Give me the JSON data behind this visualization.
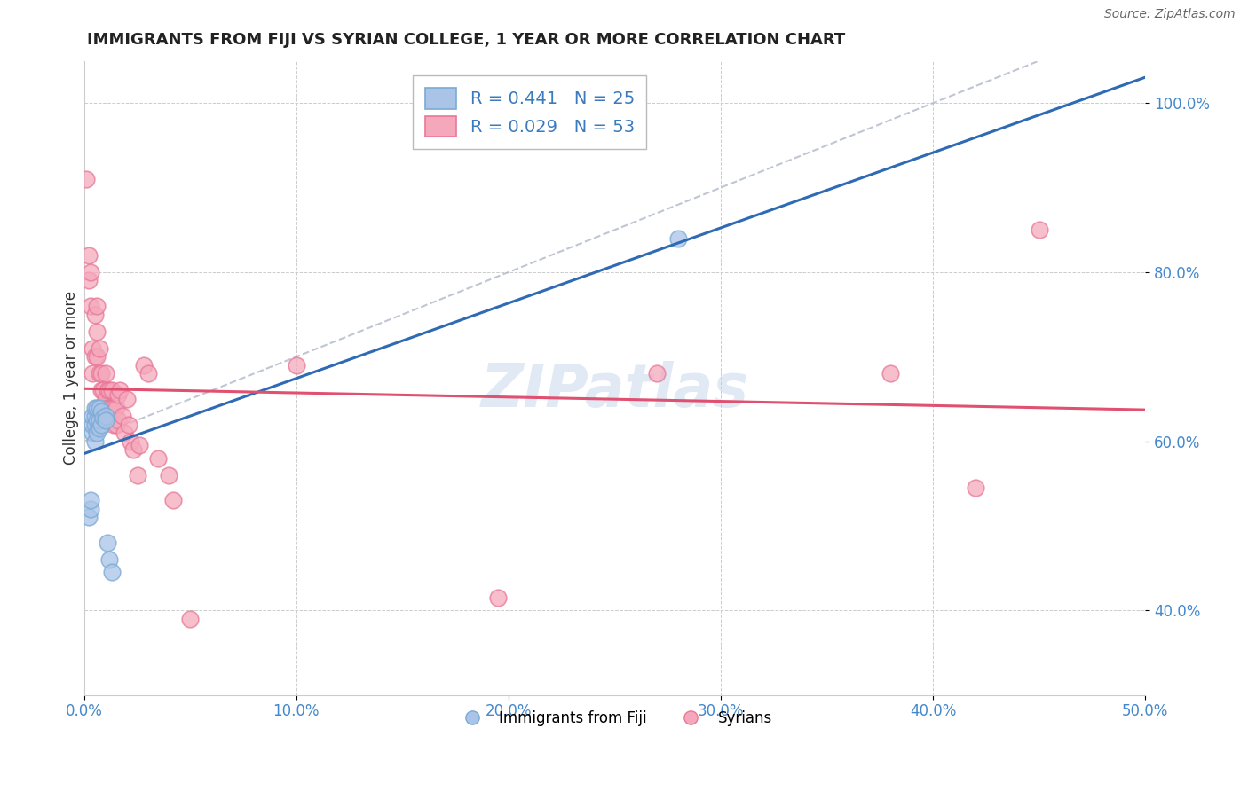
{
  "title": "IMMIGRANTS FROM FIJI VS SYRIAN COLLEGE, 1 YEAR OR MORE CORRELATION CHART",
  "source_text": "Source: ZipAtlas.com",
  "ylabel": "College, 1 year or more",
  "xlim": [
    0.0,
    0.5
  ],
  "ylim": [
    0.3,
    1.05
  ],
  "xticks": [
    0.0,
    0.1,
    0.2,
    0.3,
    0.4,
    0.5
  ],
  "yticks": [
    0.4,
    0.6,
    0.8,
    1.0
  ],
  "xticklabels": [
    "0.0%",
    "10.0%",
    "20.0%",
    "30.0%",
    "40.0%",
    "50.0%"
  ],
  "yticklabels": [
    "40.0%",
    "60.0%",
    "80.0%",
    "100.0%"
  ],
  "fiji_color": "#aac4e8",
  "syrian_color": "#f5a8bc",
  "fiji_edge": "#7aaad4",
  "syrian_edge": "#e87898",
  "trend_fiji_color": "#2f6bb5",
  "trend_syrian_color": "#e05070",
  "trend_dashed_color": "#b0b8c8",
  "watermark": "ZIPatlas",
  "legend_r_fiji": "R = 0.441",
  "legend_n_fiji": "N = 25",
  "legend_r_syrian": "R = 0.029",
  "legend_n_syrian": "N = 53",
  "fiji_x": [
    0.002,
    0.003,
    0.003,
    0.004,
    0.004,
    0.004,
    0.005,
    0.005,
    0.005,
    0.005,
    0.006,
    0.006,
    0.006,
    0.007,
    0.007,
    0.007,
    0.008,
    0.008,
    0.009,
    0.01,
    0.01,
    0.011,
    0.012,
    0.013,
    0.28
  ],
  "fiji_y": [
    0.51,
    0.52,
    0.53,
    0.61,
    0.62,
    0.63,
    0.6,
    0.62,
    0.63,
    0.64,
    0.61,
    0.625,
    0.64,
    0.615,
    0.625,
    0.64,
    0.62,
    0.635,
    0.628,
    0.63,
    0.625,
    0.48,
    0.46,
    0.445,
    0.84
  ],
  "syrian_x": [
    0.001,
    0.002,
    0.002,
    0.003,
    0.003,
    0.004,
    0.004,
    0.005,
    0.005,
    0.006,
    0.006,
    0.006,
    0.007,
    0.007,
    0.008,
    0.008,
    0.009,
    0.009,
    0.01,
    0.01,
    0.011,
    0.011,
    0.012,
    0.012,
    0.013,
    0.013,
    0.014,
    0.014,
    0.015,
    0.015,
    0.016,
    0.016,
    0.017,
    0.018,
    0.019,
    0.02,
    0.021,
    0.022,
    0.023,
    0.025,
    0.026,
    0.028,
    0.03,
    0.035,
    0.04,
    0.042,
    0.05,
    0.1,
    0.195,
    0.27,
    0.38,
    0.42,
    0.45
  ],
  "syrian_y": [
    0.91,
    0.82,
    0.79,
    0.8,
    0.76,
    0.71,
    0.68,
    0.75,
    0.7,
    0.76,
    0.73,
    0.7,
    0.71,
    0.68,
    0.68,
    0.66,
    0.66,
    0.64,
    0.68,
    0.65,
    0.66,
    0.64,
    0.66,
    0.64,
    0.66,
    0.64,
    0.64,
    0.62,
    0.64,
    0.62,
    0.655,
    0.625,
    0.66,
    0.63,
    0.61,
    0.65,
    0.62,
    0.6,
    0.59,
    0.56,
    0.595,
    0.69,
    0.68,
    0.58,
    0.56,
    0.53,
    0.39,
    0.69,
    0.415,
    0.68,
    0.68,
    0.545,
    0.85
  ]
}
